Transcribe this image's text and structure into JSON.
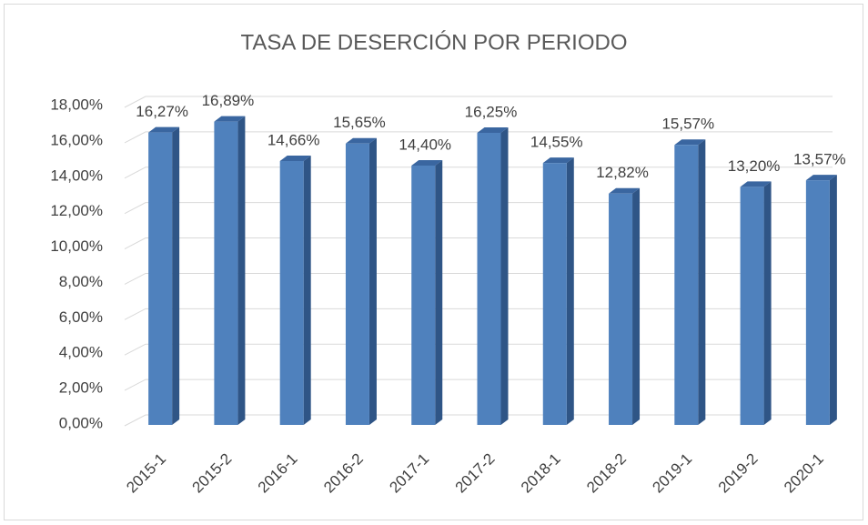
{
  "chart_data": {
    "type": "bar3d",
    "title": "TASA DE DESERCIÓN POR PERIODO",
    "categories": [
      "2015-1",
      "2015-2",
      "2016-1",
      "2016-2",
      "2017-1",
      "2017-2",
      "2018-1",
      "2018-2",
      "2019-1",
      "2019-2",
      "2020-1"
    ],
    "values": [
      16.27,
      16.89,
      14.66,
      15.65,
      14.4,
      16.25,
      14.55,
      12.82,
      15.57,
      13.2,
      13.57
    ],
    "value_labels": [
      "16,27%",
      "16,89%",
      "14,66%",
      "15,65%",
      "14,40%",
      "16,25%",
      "14,55%",
      "12,82%",
      "15,57%",
      "13,20%",
      "13,57%"
    ],
    "color": "#4f81bd",
    "ylim": [
      0,
      18
    ],
    "yticks": [
      {
        "value": 0,
        "label": "0,00%"
      },
      {
        "value": 2,
        "label": "2,00%"
      },
      {
        "value": 4,
        "label": "4,00%"
      },
      {
        "value": 6,
        "label": "6,00%"
      },
      {
        "value": 8,
        "label": "8,00%"
      },
      {
        "value": 10,
        "label": "10,00%"
      },
      {
        "value": 12,
        "label": "12,00%"
      },
      {
        "value": 14,
        "label": "14,00%"
      },
      {
        "value": 16,
        "label": "16,00%"
      },
      {
        "value": 18,
        "label": "18,00%"
      }
    ],
    "grid": true
  }
}
